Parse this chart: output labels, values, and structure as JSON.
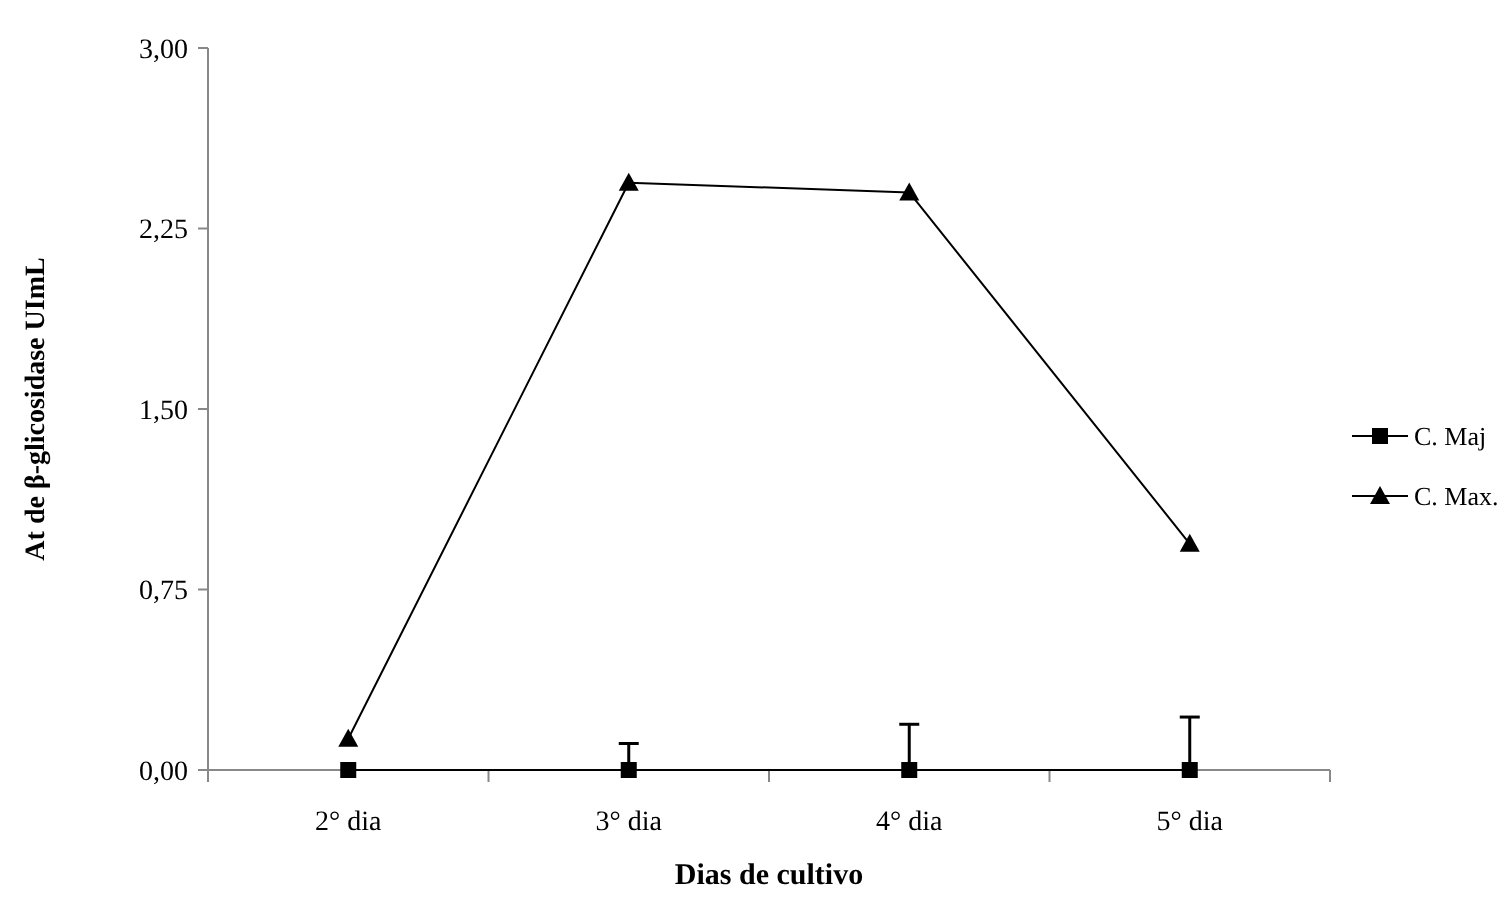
{
  "chart_data": {
    "type": "line",
    "xlabel": "Dias de cultivo",
    "ylabel": "At de β-glicosidase UImL",
    "categories": [
      "2° dia",
      "3° dia",
      "4° dia",
      "5° dia"
    ],
    "series": [
      {
        "name": "C. Maj",
        "color": "#000000",
        "marker": "square",
        "values": [
          0,
          0,
          0,
          0
        ],
        "errors": [
          null,
          [
            0,
            0.11
          ],
          [
            0,
            0.19
          ],
          [
            0,
            0.22
          ]
        ]
      },
      {
        "name": "C. Max.",
        "color": "#000000",
        "marker": "triangle",
        "values": [
          0.13,
          2.44,
          2.4,
          0.94
        ]
      }
    ],
    "ylim": [
      0,
      3
    ],
    "yticks": [
      {
        "value": 0,
        "label": "0,00"
      },
      {
        "value": 0.75,
        "label": "0,75"
      },
      {
        "value": 1.5,
        "label": "1,50"
      },
      {
        "value": 2.25,
        "label": "2,25"
      },
      {
        "value": 3,
        "label": "3,00"
      }
    ],
    "grid": false,
    "legend": "right",
    "line_style": "solid"
  }
}
